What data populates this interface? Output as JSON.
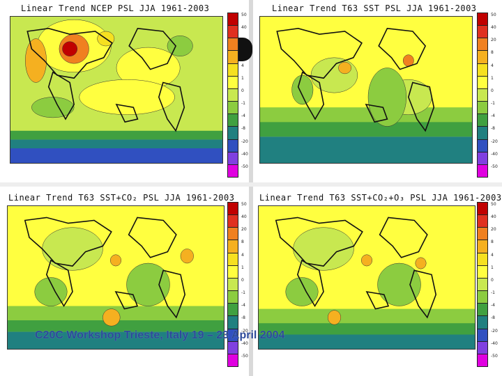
{
  "panels": [
    {
      "title": "Linear Trend NCEP PSL JJA 1961-2003"
    },
    {
      "title": "Linear Trend T63 SST PSL JJA 1961-2003"
    },
    {
      "title": "Linear Trend T63 SST+CO₂ PSL JJA 1961-2003"
    },
    {
      "title": "Linear Trend T63 SST+CO₂+O₃ PSL JJA 1961-2003"
    }
  ],
  "colorbar": {
    "labels": [
      "50",
      "40",
      "20",
      "8",
      "4",
      "1",
      "0",
      "-1",
      "-4",
      "-8",
      "-20",
      "-40",
      "-50"
    ],
    "colors": [
      "#c00000",
      "#e03020",
      "#f08020",
      "#f5b020",
      "#f6e020",
      "#ffff40",
      "#c8e850",
      "#8ccc40",
      "#40a040",
      "#208080",
      "#3050c0",
      "#8040e0",
      "#e000e0"
    ]
  },
  "footer": {
    "text": "C20C Workshop Trieste, Italy 19 – 23 April 2004"
  }
}
